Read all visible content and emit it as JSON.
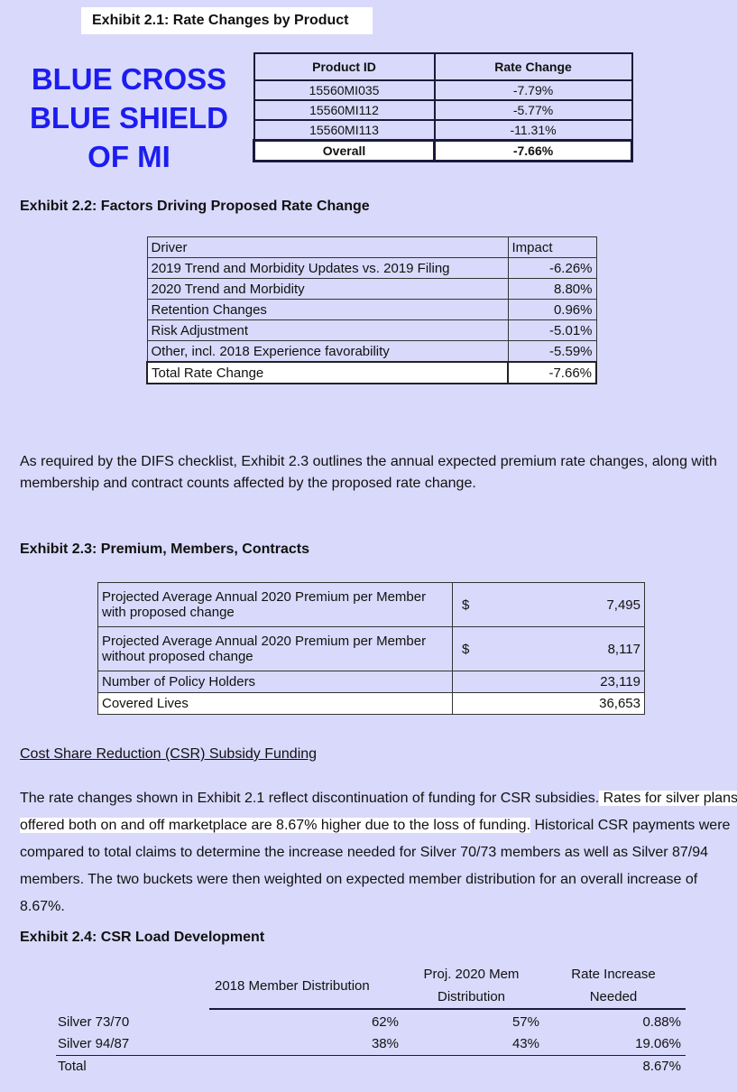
{
  "exhibit_2_1": {
    "title": "Exhibit 2.1: Rate Changes by Product",
    "headers": [
      "Product ID",
      "Rate Change"
    ],
    "rows": [
      [
        "15560MI035",
        "-7.79%"
      ],
      [
        "15560MI112",
        "-5.77%"
      ],
      [
        "15560MI113",
        "-11.31%"
      ]
    ],
    "total": [
      "Overall",
      "-7.66%"
    ]
  },
  "logo": {
    "line1": "BLUE CROSS",
    "line2": "BLUE SHIELD",
    "line3": "OF MI",
    "color": "#1c1cf0"
  },
  "exhibit_2_2": {
    "title": "Exhibit 2.2: Factors Driving Proposed Rate Change",
    "headers": [
      "Driver",
      "Impact"
    ],
    "rows": [
      [
        "2019 Trend and Morbidity Updates vs. 2019 Filing",
        "-6.26%"
      ],
      [
        "2020 Trend and Morbidity",
        "8.80%"
      ],
      [
        "Retention Changes",
        "0.96%"
      ],
      [
        "Risk Adjustment",
        "-5.01%"
      ],
      [
        "Other, incl. 2018 Experience favorability",
        "-5.59%"
      ]
    ],
    "total": [
      "Total Rate Change",
      "-7.66%"
    ]
  },
  "intro_paragraph": "As required by the DIFS checklist, Exhibit 2.3 outlines the annual expected premium rate changes, along with membership and contract counts affected by the proposed rate change.",
  "exhibit_2_3": {
    "title": "Exhibit 2.3: Premium, Members, Contracts",
    "rows": [
      [
        "Projected Average Annual 2020 Premium per Member with proposed change",
        "$",
        "7,495"
      ],
      [
        "Projected Average Annual 2020 Premium per Member without proposed change",
        "$",
        "8,117"
      ],
      [
        "Number of Policy Holders",
        "",
        "23,119"
      ],
      [
        "Covered Lives",
        "",
        "36,653"
      ]
    ]
  },
  "csr": {
    "heading": "Cost Share Reduction (CSR) Subsidy Funding",
    "text_before": "The rate changes shown in Exhibit 2.1 reflect discontinuation of funding for CSR subsidies.",
    "text_highlight": " Rates for silver plans offered both on and off marketplace are 8.67% higher due to the loss of funding.",
    "text_after": " Historical CSR payments were compared to total claims to determine the increase needed for Silver 70/73 members as well as Silver 87/94 members. The two buckets were then weighted on expected member distribution for an overall increase of 8.67%."
  },
  "exhibit_2_4": {
    "title": "Exhibit 2.4: CSR Load Development",
    "headers": [
      "2018 Member Distribution",
      "Proj. 2020 Mem",
      "Distribution",
      "Rate Increase",
      "Needed"
    ],
    "rows": [
      [
        "Silver 73/70",
        "62%",
        "57%",
        "0.88%"
      ],
      [
        "Silver 94/87",
        "38%",
        "43%",
        "19.06%"
      ]
    ],
    "total": [
      "Total",
      "8.67%"
    ]
  }
}
